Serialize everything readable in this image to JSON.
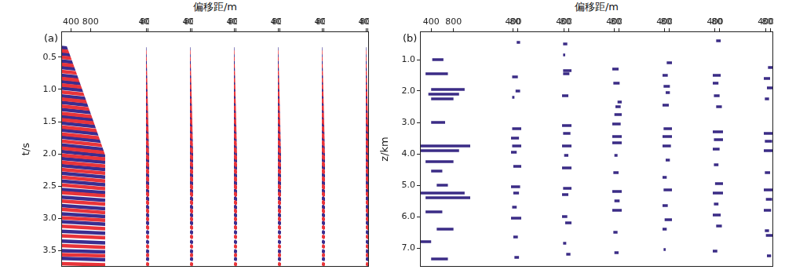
{
  "chart_data": [
    {
      "type": "gather_panels",
      "panel_label": "(a)",
      "x_label": "偏移距/m",
      "y_label": "t/s",
      "xlim": [
        200,
        1100
      ],
      "xticks": [
        400,
        800
      ],
      "ylim": [
        0.1,
        3.75
      ],
      "yticks": [
        0.5,
        {
          "value": 1,
          "label": "1.0"
        },
        1.5,
        {
          "value": 2,
          "label": "2.0"
        },
        2.5,
        {
          "value": 3,
          "label": "3.0"
        },
        3.5
      ],
      "grid": false,
      "series": [
        {
          "color": "#e8343a",
          "values": [
            [
              0.4,
              0.47
            ],
            [
              0.5,
              0.57
            ],
            [
              0.61,
              0.68
            ],
            [
              0.72,
              0.79
            ],
            [
              0.83,
              0.9
            ],
            [
              0.93,
              1.0
            ],
            [
              1.04,
              1.11
            ],
            [
              1.15,
              1.22
            ],
            [
              1.26,
              1.33
            ],
            [
              1.37,
              1.44
            ],
            [
              1.47,
              1.54
            ],
            [
              1.58,
              1.65
            ],
            [
              1.69,
              1.76
            ],
            [
              1.8,
              1.87
            ],
            [
              1.91,
              1.98
            ],
            [
              2.02,
              2.08
            ],
            [
              2.13,
              2.19
            ],
            [
              2.24,
              2.3
            ],
            [
              2.36,
              2.42
            ],
            [
              2.48,
              2.54
            ],
            [
              2.6,
              2.65
            ],
            [
              2.73,
              2.78
            ],
            [
              2.86,
              2.91
            ],
            [
              2.99,
              3.03
            ],
            [
              3.12,
              3.16
            ],
            [
              3.27,
              3.3
            ],
            [
              3.42,
              3.45
            ],
            [
              3.56,
              3.58
            ],
            [
              3.7,
              3.72
            ]
          ]
        },
        {
          "color": "#3a2d8f",
          "values": [
            [
              0.35,
              0.42
            ],
            [
              0.45,
              0.52
            ],
            [
              0.56,
              0.63
            ],
            [
              0.66,
              0.73
            ],
            [
              0.78,
              0.85
            ],
            [
              0.88,
              0.95
            ],
            [
              0.98,
              1.05
            ],
            [
              1.1,
              1.17
            ],
            [
              1.2,
              1.27
            ],
            [
              1.31,
              1.38
            ],
            [
              1.42,
              1.49
            ],
            [
              1.52,
              1.59
            ],
            [
              1.63,
              1.7
            ],
            [
              1.74,
              1.81
            ],
            [
              1.86,
              1.93
            ],
            [
              1.96,
              2.03
            ],
            [
              2.07,
              2.13
            ],
            [
              2.18,
              2.24
            ],
            [
              2.3,
              2.36
            ],
            [
              2.42,
              2.48
            ],
            [
              2.55,
              2.6
            ],
            [
              2.67,
              2.72
            ],
            [
              2.8,
              2.85
            ],
            [
              2.93,
              2.97
            ],
            [
              3.05,
              3.09
            ],
            [
              3.2,
              3.23
            ],
            [
              3.35,
              3.38
            ],
            [
              3.5,
              3.52
            ],
            [
              3.62,
              3.64
            ]
          ]
        }
      ],
      "panels": [
        {
          "mute": [
            [
              200,
              0.28
            ],
            [
              300,
              0.3
            ],
            [
              500,
              0.72
            ],
            [
              700,
              1.15
            ],
            [
              900,
              1.58
            ],
            [
              1100,
              2.02
            ]
          ]
        },
        {
          "mute": [
            [
              200,
              0.28
            ],
            [
              300,
              0.3
            ],
            [
              500,
              0.73
            ],
            [
              700,
              1.16
            ],
            [
              900,
              1.6
            ],
            [
              1100,
              2.05
            ]
          ]
        },
        {
          "mute": [
            [
              200,
              0.28
            ],
            [
              300,
              0.3
            ],
            [
              500,
              0.72
            ],
            [
              700,
              1.14
            ],
            [
              900,
              1.57
            ],
            [
              1100,
              2.0
            ]
          ]
        },
        {
          "mute": [
            [
              200,
              0.28
            ],
            [
              300,
              0.3
            ],
            [
              500,
              0.73
            ],
            [
              700,
              1.16
            ],
            [
              900,
              1.6
            ],
            [
              1100,
              2.05
            ]
          ]
        },
        {
          "mute": [
            [
              200,
              0.28
            ],
            [
              300,
              0.3
            ],
            [
              500,
              0.72
            ],
            [
              700,
              1.15
            ],
            [
              900,
              1.59
            ],
            [
              1100,
              2.03
            ]
          ]
        },
        {
          "mute": [
            [
              200,
              0.28
            ],
            [
              300,
              0.3
            ],
            [
              500,
              0.73
            ],
            [
              700,
              1.16
            ],
            [
              900,
              1.6
            ],
            [
              1100,
              2.05
            ]
          ]
        },
        {
          "mute": [
            [
              200,
              0.28
            ],
            [
              300,
              0.3
            ],
            [
              500,
              0.74
            ],
            [
              700,
              1.18
            ],
            [
              900,
              1.62
            ],
            [
              1100,
              2.08
            ]
          ]
        }
      ]
    },
    {
      "type": "segment_panels",
      "panel_label": "(b)",
      "x_label": "偏移距/m",
      "y_label": "z/km",
      "xlim": [
        200,
        1100
      ],
      "xticks": [
        400,
        800
      ],
      "ylim": [
        0.1,
        7.6
      ],
      "yticks": [
        {
          "value": 1,
          "label": "1.0"
        },
        {
          "value": 2,
          "label": "2.0"
        },
        {
          "value": 3,
          "label": "3.0"
        },
        {
          "value": 4,
          "label": "4.0"
        },
        {
          "value": 5,
          "label": "5.0"
        },
        {
          "value": 6,
          "label": "6.0"
        },
        {
          "value": 7,
          "label": "7.0"
        }
      ],
      "grid": false,
      "color": "#3b2c86",
      "panels": [
        {
          "segments": [
            [
              1.0,
              420,
              620
            ],
            [
              1.45,
              300,
              700
            ],
            [
              1.95,
              400,
              1000
            ],
            [
              2.1,
              350,
              900
            ],
            [
              2.25,
              400,
              800
            ],
            [
              3.0,
              400,
              650
            ],
            [
              3.75,
              200,
              1100
            ],
            [
              3.9,
              200,
              900
            ],
            [
              4.25,
              300,
              800
            ],
            [
              4.55,
              400,
              600
            ],
            [
              5.0,
              500,
              700
            ],
            [
              5.25,
              200,
              1000
            ],
            [
              5.4,
              300,
              1100
            ],
            [
              5.85,
              300,
              600
            ],
            [
              6.4,
              500,
              800
            ],
            [
              6.8,
              200,
              400
            ],
            [
              7.35,
              400,
              700
            ]
          ]
        },
        {
          "segments": [
            [
              0.45,
              700,
              1000
            ],
            [
              1.55,
              300,
              800
            ],
            [
              2.0,
              600,
              1000
            ],
            [
              2.2,
              300,
              500
            ],
            [
              3.2,
              300,
              1100
            ],
            [
              3.5,
              200,
              900
            ],
            [
              3.75,
              300,
              1100
            ],
            [
              3.95,
              200,
              700
            ],
            [
              4.4,
              400,
              1100
            ],
            [
              5.05,
              200,
              1000
            ],
            [
              5.25,
              400,
              900
            ],
            [
              5.7,
              300,
              700
            ],
            [
              6.05,
              200,
              1100
            ],
            [
              6.65,
              400,
              800
            ],
            [
              7.3,
              500,
              900
            ]
          ]
        },
        {
          "segments": [
            [
              0.5,
              300,
              700
            ],
            [
              0.85,
              300,
              500
            ],
            [
              1.35,
              300,
              1100
            ],
            [
              1.45,
              300,
              900
            ],
            [
              2.15,
              200,
              800
            ],
            [
              3.1,
              200,
              1100
            ],
            [
              3.35,
              300,
              1000
            ],
            [
              3.75,
              200,
              1100
            ],
            [
              4.05,
              400,
              800
            ],
            [
              4.45,
              200,
              1100
            ],
            [
              5.1,
              300,
              1100
            ],
            [
              5.3,
              200,
              800
            ],
            [
              6.0,
              200,
              700
            ],
            [
              6.2,
              500,
              1100
            ],
            [
              6.85,
              300,
              600
            ],
            [
              7.2,
              600,
              1000
            ]
          ]
        },
        {
          "segments": [
            [
              1.3,
              200,
              800
            ],
            [
              1.75,
              300,
              900
            ],
            [
              2.35,
              700,
              1100
            ],
            [
              2.5,
              500,
              1000
            ],
            [
              2.75,
              400,
              1100
            ],
            [
              3.05,
              200,
              1000
            ],
            [
              3.45,
              200,
              1100
            ],
            [
              3.65,
              200,
              1100
            ],
            [
              4.05,
              400,
              700
            ],
            [
              4.6,
              300,
              800
            ],
            [
              5.2,
              200,
              1100
            ],
            [
              5.5,
              400,
              900
            ],
            [
              5.8,
              200,
              1100
            ],
            [
              6.5,
              300,
              700
            ],
            [
              7.15,
              400,
              800
            ]
          ]
        },
        {
          "segments": [
            [
              1.1,
              600,
              1100
            ],
            [
              1.5,
              200,
              700
            ],
            [
              1.85,
              300,
              900
            ],
            [
              2.05,
              500,
              900
            ],
            [
              2.45,
              200,
              800
            ],
            [
              3.2,
              300,
              1100
            ],
            [
              3.45,
              200,
              1100
            ],
            [
              3.75,
              200,
              1000
            ],
            [
              4.2,
              500,
              900
            ],
            [
              4.75,
              200,
              600
            ],
            [
              5.15,
              300,
              1100
            ],
            [
              5.65,
              200,
              700
            ],
            [
              6.1,
              400,
              1100
            ],
            [
              6.4,
              200,
              600
            ],
            [
              7.05,
              300,
              500
            ]
          ]
        },
        {
          "segments": [
            [
              0.4,
              500,
              900
            ],
            [
              1.5,
              200,
              900
            ],
            [
              1.75,
              200,
              700
            ],
            [
              2.15,
              300,
              800
            ],
            [
              2.5,
              500,
              1000
            ],
            [
              3.3,
              200,
              1100
            ],
            [
              3.55,
              300,
              1100
            ],
            [
              3.85,
              200,
              800
            ],
            [
              4.35,
              300,
              700
            ],
            [
              4.95,
              400,
              1100
            ],
            [
              5.25,
              200,
              1100
            ],
            [
              5.6,
              300,
              700
            ],
            [
              5.95,
              200,
              900
            ],
            [
              6.3,
              500,
              1000
            ],
            [
              7.1,
              200,
              600
            ]
          ]
        },
        {
          "segments": [
            [
              1.25,
              600,
              1100
            ],
            [
              1.6,
              200,
              800
            ],
            [
              1.9,
              500,
              1100
            ],
            [
              2.25,
              300,
              700
            ],
            [
              3.35,
              200,
              1100
            ],
            [
              3.6,
              300,
              1000
            ],
            [
              3.9,
              200,
              1100
            ],
            [
              4.6,
              300,
              800
            ],
            [
              5.15,
              200,
              1100
            ],
            [
              5.45,
              400,
              1000
            ],
            [
              5.8,
              200,
              900
            ],
            [
              6.45,
              300,
              700
            ],
            [
              6.6,
              400,
              1100
            ],
            [
              7.25,
              500,
              900
            ]
          ]
        }
      ]
    }
  ]
}
